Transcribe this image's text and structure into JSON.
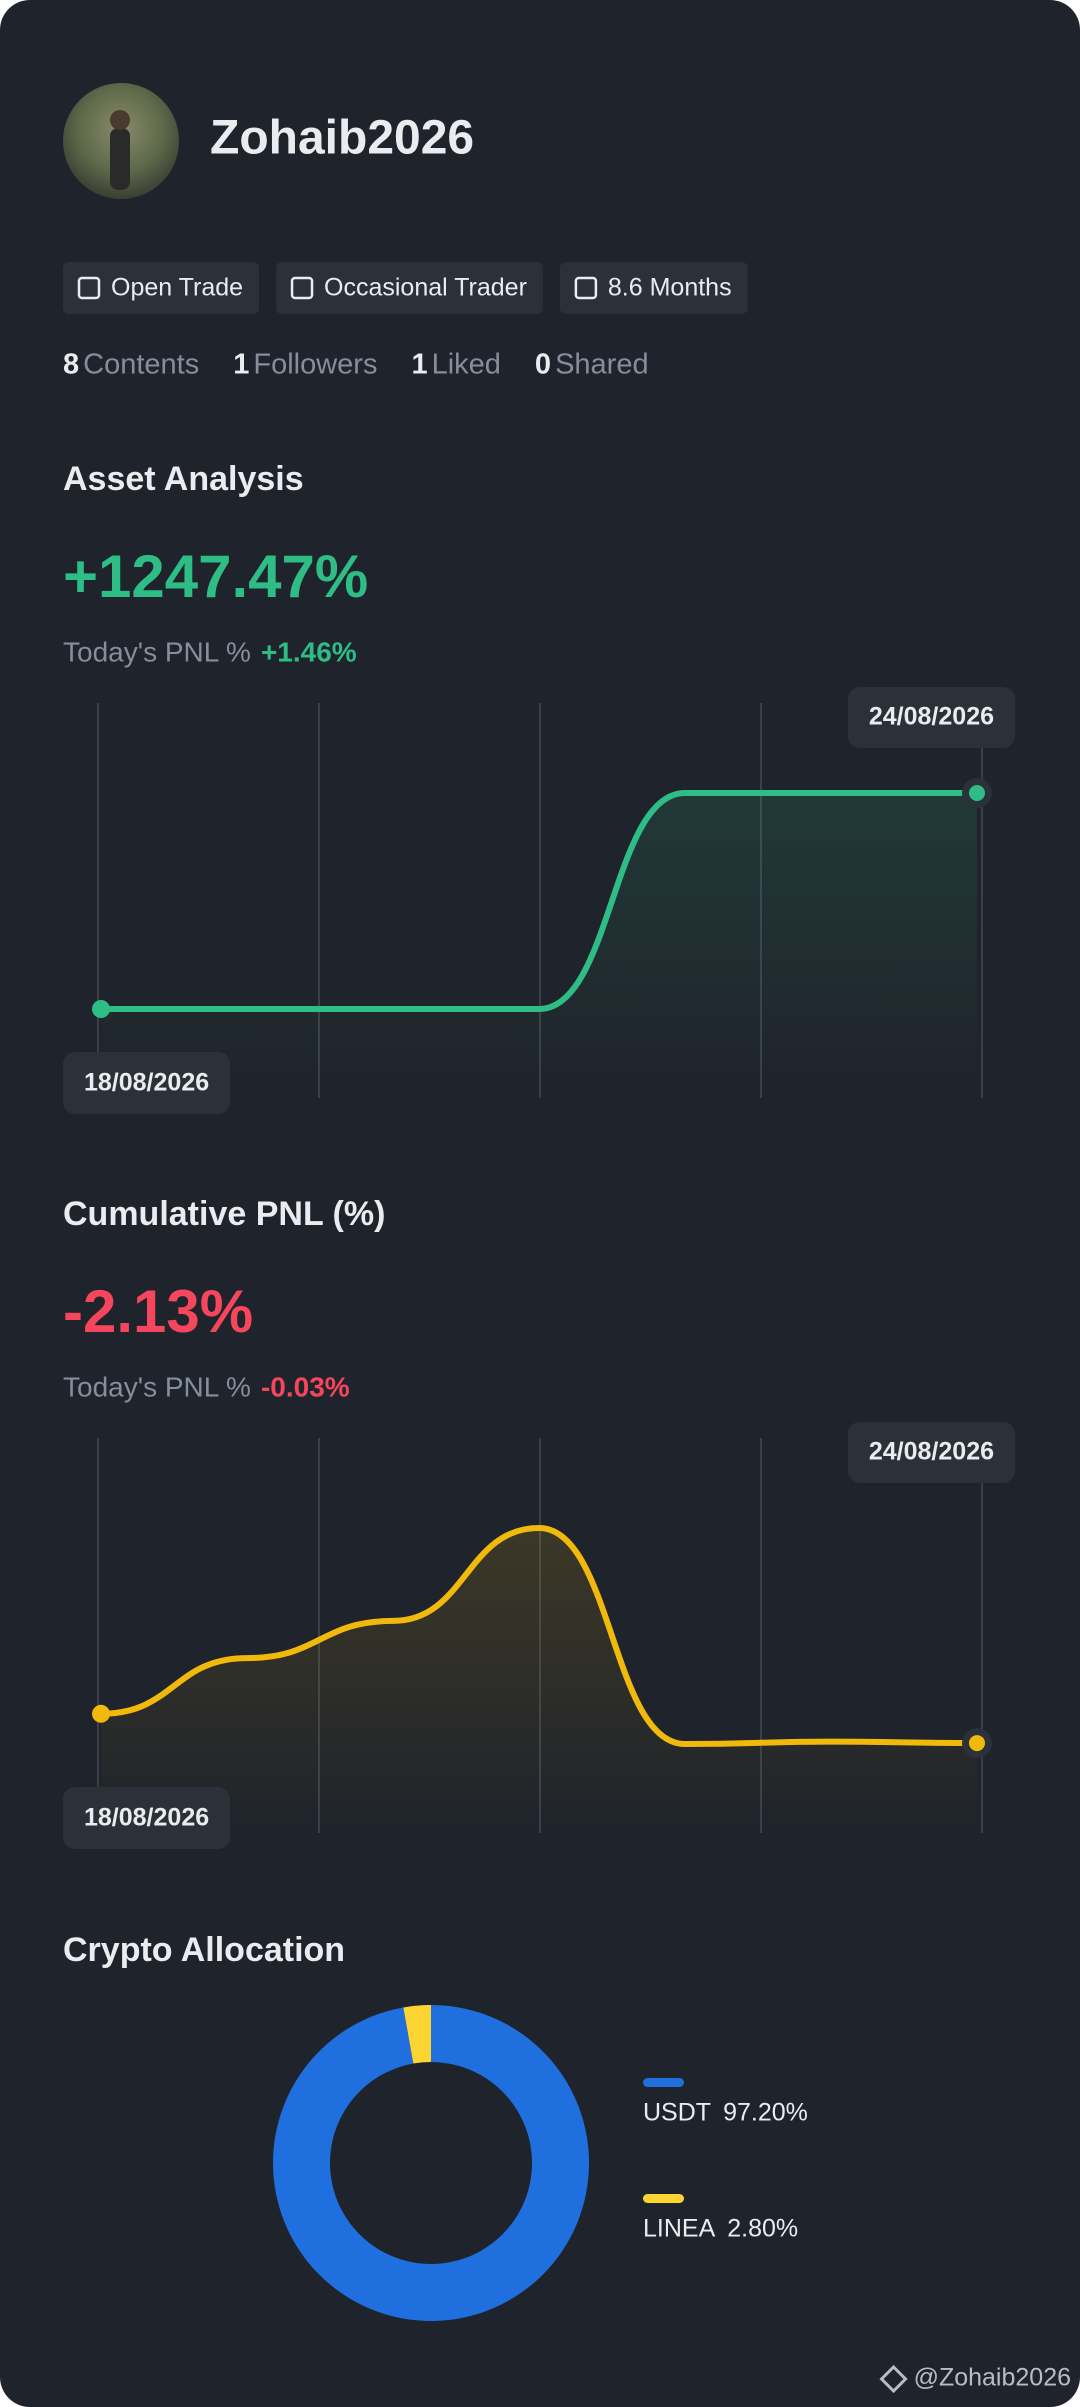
{
  "profile": {
    "name": "Zohaib2026",
    "tags": [
      "Open Trade",
      "Occasional Trader",
      "8.6 Months"
    ],
    "stats": [
      {
        "count": 8,
        "label": "Contents"
      },
      {
        "count": 1,
        "label": "Followers"
      },
      {
        "count": 1,
        "label": "Liked"
      },
      {
        "count": 0,
        "label": "Shared"
      }
    ]
  },
  "chart_data": [
    {
      "type": "line",
      "title": "Asset Analysis",
      "headline": "+1247.47%",
      "headline_color": "#2ebd85",
      "pnl_label": "Today's PNL %",
      "pnl_value": "+1.46%",
      "x": [
        "18/08/2026",
        null,
        null,
        null,
        null,
        null,
        "24/08/2026"
      ],
      "series": [
        {
          "color": "#2ebd85",
          "values": [
            0,
            0,
            0,
            0,
            1247.47,
            1247.47,
            1247.47
          ]
        }
      ]
    },
    {
      "type": "line",
      "title": "Cumulative PNL (%)",
      "headline": "-2.13%",
      "headline_color": "#f6465d",
      "pnl_label": "Today's PNL %",
      "pnl_value": "-0.03%",
      "x": [
        "18/08/2026",
        null,
        null,
        null,
        null,
        null,
        "24/08/2026"
      ],
      "series": [
        {
          "color": "#f0b90b",
          "values": [
            -1.5,
            -0.3,
            0.5,
            2.5,
            -2.15,
            -2.1,
            -2.13
          ]
        }
      ]
    },
    {
      "type": "pie",
      "title": "Crypto Allocation",
      "categories": [
        "USDT",
        "LINEA"
      ],
      "values": [
        97.2,
        2.8
      ],
      "value_labels": [
        "97.20%",
        "2.80%"
      ],
      "colors": [
        "#1f6fde",
        "#fcd535"
      ]
    }
  ],
  "watermark": "@Zohaib2026"
}
